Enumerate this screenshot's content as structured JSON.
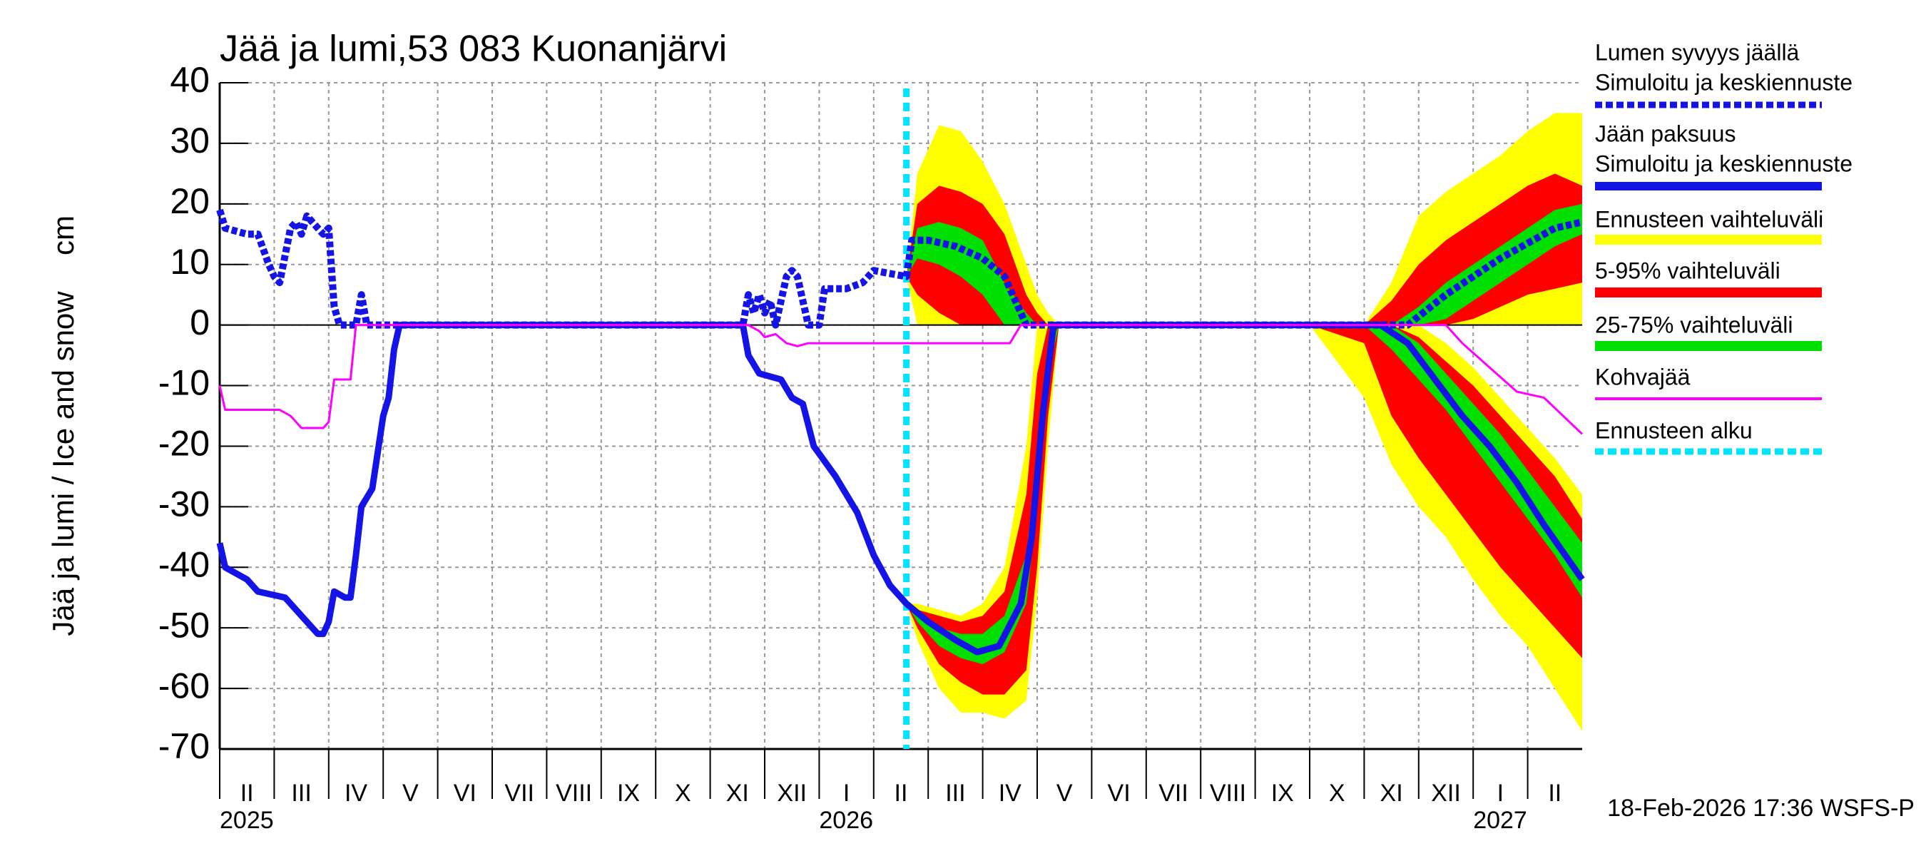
{
  "chart_data": {
    "type": "line",
    "title": "Jää ja lumi,53 083 Kuonanjärvi",
    "ylabel": "Jää ja lumi / Ice and snow",
    "yunit": "cm",
    "footer": "18-Feb-2026 17:36 WSFS-P",
    "xlim": [
      0,
      25
    ],
    "ylim": [
      -70,
      40
    ],
    "yticks": [
      -70,
      -60,
      -50,
      -40,
      -30,
      -20,
      -10,
      0,
      10,
      20,
      30,
      40
    ],
    "grid": true,
    "xticks": [
      {
        "value": 0,
        "label": "II"
      },
      {
        "value": 1,
        "label": "III"
      },
      {
        "value": 2,
        "label": "IV"
      },
      {
        "value": 3,
        "label": "V"
      },
      {
        "value": 4,
        "label": "VI"
      },
      {
        "value": 5,
        "label": "VII"
      },
      {
        "value": 6,
        "label": "VIII"
      },
      {
        "value": 7,
        "label": "IX"
      },
      {
        "value": 8,
        "label": "X"
      },
      {
        "value": 9,
        "label": "XI"
      },
      {
        "value": 10,
        "label": "XII"
      },
      {
        "value": 11,
        "label": "I"
      },
      {
        "value": 12,
        "label": "II"
      },
      {
        "value": 13,
        "label": "III"
      },
      {
        "value": 14,
        "label": "IV"
      },
      {
        "value": 15,
        "label": "V"
      },
      {
        "value": 16,
        "label": "VI"
      },
      {
        "value": 17,
        "label": "VII"
      },
      {
        "value": 18,
        "label": "VIII"
      },
      {
        "value": 19,
        "label": "IX"
      },
      {
        "value": 20,
        "label": "X"
      },
      {
        "value": 21,
        "label": "XI"
      },
      {
        "value": 22,
        "label": "XII"
      },
      {
        "value": 23,
        "label": "I"
      },
      {
        "value": 24,
        "label": "II"
      }
    ],
    "year_ticks": [
      {
        "value": 0,
        "label": "2025"
      },
      {
        "value": 11,
        "label": "2026"
      },
      {
        "value": 23,
        "label": "2027"
      }
    ],
    "series": [
      {
        "name_lines": [
          "Lumen syvyys jäällä",
          "Simuloitu ja keskiennuste"
        ],
        "color": "#1414e6",
        "style": "dotted",
        "x": [
          0,
          0.1,
          0.5,
          0.7,
          0.9,
          1.0,
          1.1,
          1.3,
          1.4,
          1.5,
          1.6,
          1.8,
          1.9,
          2.0,
          2.1,
          2.2,
          2.5,
          2.6,
          2.7,
          9.6,
          9.7,
          9.8,
          9.9,
          10.0,
          10.1,
          10.2,
          10.4,
          10.5,
          10.6,
          10.8,
          11.0,
          11.1,
          11.5,
          11.8,
          12.0,
          12.6,
          12.7,
          13.0,
          13.5,
          14.0,
          14.4,
          14.8,
          21.8,
          22.5,
          23.5,
          24.5,
          25
        ],
        "values": [
          19,
          16,
          15,
          15,
          10,
          8,
          7,
          16,
          17,
          15,
          18,
          16,
          15,
          16,
          3,
          0,
          0,
          5,
          0,
          0,
          5,
          2,
          5,
          2,
          4,
          0,
          8,
          9,
          8,
          0,
          0,
          6,
          6,
          7,
          9,
          8,
          14,
          14,
          13,
          11,
          8,
          0,
          0,
          5,
          11,
          16,
          17
        ]
      },
      {
        "name_lines": [
          "Jään paksuus",
          "Simuloitu ja keskiennuste"
        ],
        "color": "#1414e6",
        "style": "solid",
        "x": [
          0,
          0.1,
          0.5,
          0.7,
          1.2,
          1.5,
          1.8,
          1.9,
          2.0,
          2.1,
          2.3,
          2.4,
          2.5,
          2.6,
          2.8,
          3.0,
          3.1,
          3.2,
          3.3,
          9.6,
          9.7,
          9.9,
          10.3,
          10.5,
          10.7,
          10.9,
          11.3,
          11.7,
          12.0,
          12.3,
          12.6,
          13.0,
          13.5,
          13.9,
          14.3,
          14.7,
          14.9,
          15.1,
          15.3,
          21.3,
          21.8,
          22.3,
          22.8,
          23.3,
          23.8,
          24.3,
          25
        ],
        "values": [
          -36,
          -40,
          -42,
          -44,
          -45,
          -48,
          -51,
          -51,
          -49,
          -44,
          -45,
          -45,
          -38,
          -30,
          -27,
          -15,
          -12,
          -4,
          0,
          0,
          -5,
          -8,
          -9,
          -12,
          -13,
          -20,
          -25,
          -31,
          -38,
          -43,
          -46,
          -49,
          -52,
          -54,
          -53,
          -46,
          -35,
          -15,
          0,
          0,
          -3,
          -9,
          -15,
          -20,
          -26,
          -33,
          -42
        ]
      },
      {
        "name_lines": [
          "Kohvajää"
        ],
        "color": "#ff00ff",
        "style": "thin",
        "x": [
          0,
          0.1,
          1.1,
          1.3,
          1.5,
          1.9,
          2.0,
          2.1,
          2.4,
          2.5,
          9.7,
          9.9,
          10.0,
          10.2,
          10.4,
          10.6,
          10.8,
          14.5,
          14.7,
          22.5,
          22.8,
          23.3,
          23.8,
          24.3,
          25
        ],
        "values": [
          -10,
          -14,
          -14,
          -15,
          -17,
          -17,
          -16,
          -9,
          -9,
          0,
          0,
          -1,
          -2,
          -1.5,
          -3,
          -3.5,
          -3,
          -3,
          0,
          0,
          -3,
          -7,
          -11,
          -12,
          -18
        ]
      }
    ],
    "bands": [
      {
        "name": "Ennusteen vaihteluväli",
        "color": "#ffff00",
        "x": [
          12.6,
          12.8,
          13.2,
          13.6,
          14.0,
          14.4,
          14.8,
          15.0,
          15.2,
          15.4,
          16,
          18,
          20,
          21.0,
          21.5,
          22.0,
          22.5,
          23.0,
          23.5,
          24.0,
          24.5,
          25
        ],
        "snow_high": [
          8,
          25,
          33,
          32,
          27,
          20,
          10,
          5,
          2,
          0,
          0,
          0,
          0,
          0,
          7,
          18,
          22,
          25,
          28,
          32,
          35,
          35
        ],
        "snow_low": [
          8,
          0,
          0,
          0,
          0,
          0,
          0,
          0,
          0,
          0,
          0,
          0,
          0,
          0,
          0,
          0,
          0,
          0,
          0,
          0,
          0,
          0
        ],
        "ice_high": [
          -46,
          -46,
          -47,
          -48,
          -46,
          -40,
          -20,
          0,
          0,
          0,
          0,
          0,
          0,
          0,
          0,
          0,
          -3,
          -7,
          -12,
          -17,
          -22,
          -28
        ],
        "ice_low": [
          -46,
          -52,
          -60,
          -64,
          -64,
          -65,
          -62,
          -45,
          -20,
          0,
          0,
          0,
          0,
          -12,
          -23,
          -30,
          -35,
          -42,
          -48,
          -53,
          -60,
          -67
        ]
      },
      {
        "name": "5-95% vaihteluväli",
        "color": "#ff0000",
        "x": [
          12.6,
          12.8,
          13.2,
          13.6,
          14.0,
          14.4,
          14.8,
          15.0,
          15.2,
          15.4,
          16,
          18,
          20,
          21.0,
          21.5,
          22.0,
          22.5,
          23.0,
          23.5,
          24.0,
          24.5,
          25
        ],
        "snow_high": [
          8,
          20,
          23,
          22,
          20,
          15,
          5,
          2,
          0,
          0,
          0,
          0,
          0,
          0,
          4,
          10,
          14,
          17,
          20,
          23,
          25,
          23
        ],
        "snow_low": [
          8,
          5,
          2,
          0,
          0,
          0,
          0,
          0,
          0,
          0,
          0,
          0,
          0,
          0,
          0,
          0,
          0,
          1,
          3,
          5,
          6,
          7
        ],
        "ice_high": [
          -46,
          -47,
          -48,
          -49,
          -48,
          -44,
          -28,
          -8,
          0,
          0,
          0,
          0,
          0,
          0,
          0,
          -2,
          -6,
          -10,
          -15,
          -20,
          -25,
          -32
        ],
        "ice_low": [
          -46,
          -50,
          -56,
          -59,
          -61,
          -61,
          -57,
          -40,
          -15,
          0,
          0,
          0,
          0,
          -3,
          -15,
          -22,
          -28,
          -34,
          -40,
          -45,
          -50,
          -55
        ]
      },
      {
        "name": "25-75% vaihteluväli",
        "color": "#00e000",
        "x": [
          12.6,
          12.8,
          13.2,
          13.6,
          14.0,
          14.4,
          14.8,
          15.0,
          15.2,
          15.4,
          16,
          18,
          20,
          21.0,
          21.5,
          22.0,
          22.5,
          23.0,
          23.5,
          24.0,
          24.5,
          25
        ],
        "snow_high": [
          8,
          16,
          17,
          16,
          14,
          7,
          2,
          0,
          0,
          0,
          0,
          0,
          0,
          0,
          0,
          3,
          7,
          10,
          13,
          16,
          19,
          20
        ],
        "snow_low": [
          8,
          11,
          10,
          8,
          5,
          0,
          0,
          0,
          0,
          0,
          0,
          0,
          0,
          0,
          0,
          0,
          1,
          4,
          7,
          10,
          13,
          15
        ],
        "ice_high": [
          -46,
          -48,
          -50,
          -51,
          -51,
          -48,
          -38,
          -22,
          -4,
          0,
          0,
          0,
          0,
          0,
          0,
          -3,
          -8,
          -13,
          -18,
          -24,
          -30,
          -36
        ],
        "ice_low": [
          -46,
          -49,
          -53,
          -55,
          -56,
          -54,
          -46,
          -30,
          -8,
          0,
          0,
          0,
          0,
          0,
          -4,
          -9,
          -14,
          -20,
          -26,
          -32,
          -38,
          -45
        ]
      }
    ],
    "forecast_start": {
      "name": "Ennusteen alku",
      "color": "#00e5ff",
      "x": 12.6
    }
  }
}
